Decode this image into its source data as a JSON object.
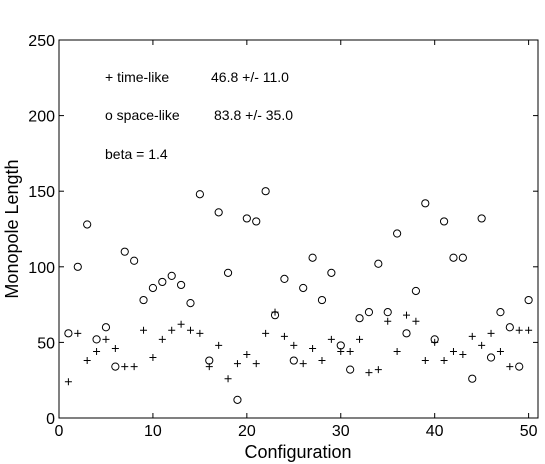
{
  "chart_data": {
    "type": "scatter",
    "xlabel": "Configuration",
    "ylabel": "Monopole Length",
    "xlim": [
      0,
      51
    ],
    "ylim": [
      0,
      250
    ],
    "xticks": [
      0,
      10,
      20,
      30,
      40,
      50
    ],
    "yticks": [
      0,
      50,
      100,
      150,
      200,
      250
    ],
    "grid": false,
    "annotations": {
      "timelike": "+ time-like",
      "timelike_value": "46.8 +/- 11.0",
      "spacelike": "o space-like",
      "spacelike_value": "83.8 +/- 35.0",
      "beta": "beta = 1.4"
    },
    "series": [
      {
        "marker": "plus",
        "x": [
          1,
          2,
          3,
          4,
          5,
          6,
          7,
          8,
          9,
          10,
          11,
          12,
          13,
          14,
          15,
          16,
          17,
          18,
          19,
          20,
          21,
          22,
          23,
          24,
          25,
          26,
          27,
          28,
          29,
          30,
          31,
          32,
          33,
          34,
          35,
          36,
          37,
          38,
          39,
          40,
          41,
          42,
          43,
          44,
          45,
          46,
          47,
          48,
          49,
          50
        ],
        "values": [
          24,
          56,
          38,
          44,
          52,
          46,
          34,
          34,
          58,
          40,
          52,
          58,
          62,
          58,
          56,
          34,
          48,
          26,
          36,
          42,
          36,
          56,
          70,
          54,
          48,
          36,
          46,
          38,
          52,
          44,
          44,
          52,
          30,
          32,
          64,
          44,
          68,
          64,
          38,
          50,
          38,
          44,
          42,
          54,
          48,
          56,
          44,
          34,
          58,
          58
        ]
      },
      {
        "marker": "circle",
        "x": [
          1,
          2,
          3,
          4,
          5,
          6,
          7,
          8,
          9,
          10,
          11,
          12,
          13,
          14,
          15,
          16,
          17,
          18,
          19,
          20,
          21,
          22,
          23,
          24,
          25,
          26,
          27,
          28,
          29,
          30,
          31,
          32,
          33,
          34,
          35,
          36,
          37,
          38,
          39,
          40,
          41,
          42,
          43,
          44,
          45,
          46,
          47,
          48,
          49,
          50
        ],
        "values": [
          56,
          100,
          128,
          52,
          60,
          34,
          110,
          104,
          78,
          86,
          90,
          94,
          88,
          76,
          148,
          38,
          136,
          96,
          12,
          132,
          130,
          150,
          68,
          92,
          38,
          86,
          106,
          78,
          96,
          48,
          32,
          66,
          70,
          102,
          70,
          122,
          56,
          84,
          142,
          52,
          130,
          106,
          106,
          26,
          132,
          40,
          70,
          60,
          34,
          78
        ]
      }
    ]
  }
}
